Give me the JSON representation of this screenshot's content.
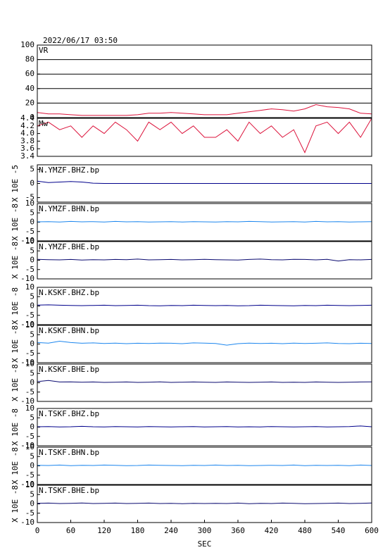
{
  "chart_data": [
    {
      "type": "line",
      "title": "2022/06/17 03:50",
      "label": "VR",
      "color": "#dc143c",
      "grid": true,
      "x": [
        0,
        20,
        40,
        60,
        80,
        100,
        120,
        140,
        160,
        180,
        200,
        220,
        240,
        260,
        280,
        300,
        320,
        340,
        360,
        380,
        400,
        420,
        440,
        460,
        480,
        500,
        520,
        540,
        560,
        580,
        600
      ],
      "values": [
        7,
        5,
        5,
        4,
        3,
        3,
        3,
        3,
        3,
        4,
        6,
        6,
        7,
        6,
        5,
        4,
        4,
        4,
        6,
        8,
        10,
        12,
        11,
        9,
        12,
        18,
        15,
        14,
        12,
        6,
        5
      ],
      "xlim": [
        0,
        600
      ],
      "ylim": [
        0,
        100
      ],
      "yticks": [
        0,
        20,
        40,
        60,
        80,
        100
      ]
    },
    {
      "type": "line",
      "label": "Mw",
      "color": "#dc143c",
      "grid": false,
      "x": [
        0,
        20,
        40,
        60,
        80,
        100,
        120,
        140,
        160,
        180,
        200,
        220,
        240,
        260,
        280,
        300,
        320,
        340,
        360,
        380,
        400,
        420,
        440,
        460,
        480,
        500,
        520,
        540,
        560,
        580,
        600
      ],
      "values": [
        4.2,
        4.3,
        4.1,
        4.2,
        3.9,
        4.2,
        4,
        4.3,
        4.1,
        3.8,
        4.3,
        4.1,
        4.3,
        4,
        4.2,
        3.9,
        3.9,
        4.1,
        3.8,
        4.3,
        4,
        4.2,
        3.9,
        4.1,
        3.5,
        4.2,
        4.3,
        4,
        4.3,
        3.9,
        4.4
      ],
      "xlim": [
        0,
        600
      ],
      "ylim": [
        3.4,
        4.4
      ],
      "yticks": [
        3.4,
        3.6,
        3.8,
        {
          "value": 4,
          "label": "4.0"
        },
        4.2,
        4.4
      ]
    },
    {
      "type": "line",
      "label": "N.YMZF.BHZ.bp",
      "ylabel": "X 10E -5",
      "color": "#00008b",
      "grid": false,
      "x": [
        0,
        20,
        40,
        60,
        80,
        100,
        120,
        140,
        160,
        180,
        200,
        220,
        240,
        260,
        280,
        300,
        320,
        340,
        360,
        380,
        400,
        420,
        440,
        460,
        480,
        500,
        520,
        540,
        560,
        580,
        600
      ],
      "values": [
        0.8,
        0.3,
        0.5,
        0.7,
        0.5,
        0.1,
        0,
        0,
        0,
        0,
        0,
        0,
        0,
        0,
        0,
        0,
        0,
        0,
        0,
        0,
        0,
        0,
        0,
        0,
        0,
        0,
        0,
        0,
        0,
        0,
        0
      ],
      "xlim": [
        0,
        600
      ],
      "ylim": [
        -6.6,
        6.6
      ],
      "yticks": [
        -5,
        0,
        5
      ]
    },
    {
      "type": "line",
      "label": "N.YMZF.BHN.bp",
      "ylabel": "X 10E -8",
      "color": "#1c86ee",
      "grid": false,
      "x": [
        0,
        20,
        40,
        60,
        80,
        100,
        120,
        140,
        160,
        180,
        200,
        220,
        240,
        260,
        280,
        300,
        320,
        340,
        360,
        380,
        400,
        420,
        440,
        460,
        480,
        500,
        520,
        540,
        560,
        580,
        600
      ],
      "values": [
        0.2,
        0.3,
        0.1,
        0.4,
        0.2,
        0.3,
        0.1,
        0.4,
        0.2,
        0.3,
        0.1,
        0.2,
        0.3,
        0.1,
        0.3,
        0.2,
        0.1,
        0.3,
        0.2,
        0.4,
        0.3,
        0.1,
        0.2,
        0.3,
        0.1,
        0.4,
        0.2,
        0.3,
        0.1,
        0.2,
        0.3
      ],
      "xlim": [
        0,
        600
      ],
      "ylim": [
        -10,
        10
      ],
      "yticks": [
        -10,
        -5,
        0,
        5,
        10
      ]
    },
    {
      "type": "line",
      "label": "N.YMZF.BHE.bp",
      "ylabel": "X 10E -8",
      "color": "#0a0a70",
      "grid": false,
      "x": [
        0,
        20,
        40,
        60,
        80,
        100,
        120,
        140,
        160,
        180,
        200,
        220,
        240,
        260,
        280,
        300,
        320,
        340,
        360,
        380,
        400,
        420,
        440,
        460,
        480,
        500,
        520,
        540,
        560,
        580,
        600
      ],
      "values": [
        0.5,
        0.3,
        0.2,
        0.4,
        0.1,
        0.3,
        0.2,
        0.4,
        0.3,
        0.6,
        0.2,
        0.3,
        0.4,
        0.2,
        0.3,
        0.5,
        0.3,
        0.2,
        0.1,
        0.4,
        0.6,
        0.3,
        0.2,
        0.5,
        0.4,
        0.2,
        0.5,
        -0.4,
        0.3,
        0.2,
        0.4
      ],
      "xlim": [
        0,
        600
      ],
      "ylim": [
        -10,
        10
      ],
      "yticks": [
        -10,
        -5,
        0,
        5,
        10
      ]
    },
    {
      "type": "line",
      "label": "N.KSKF.BHZ.bp",
      "ylabel": "X 10E -8",
      "color": "#00008b",
      "grid": false,
      "x": [
        0,
        20,
        40,
        60,
        80,
        100,
        120,
        140,
        160,
        180,
        200,
        220,
        240,
        260,
        280,
        300,
        320,
        340,
        360,
        380,
        400,
        420,
        440,
        460,
        480,
        500,
        520,
        540,
        560,
        580,
        600
      ],
      "values": [
        0.5,
        0.6,
        0.4,
        0.3,
        0.2,
        0.3,
        0.4,
        0.2,
        0.3,
        0.4,
        0.2,
        0.1,
        0.3,
        0.2,
        0.4,
        0.3,
        0.2,
        0.3,
        0.1,
        0.2,
        0.4,
        0.3,
        0.2,
        0.1,
        0.3,
        0.2,
        0.4,
        0.3,
        0.2,
        0.3,
        0.4
      ],
      "xlim": [
        0,
        600
      ],
      "ylim": [
        -10,
        10
      ],
      "yticks": [
        -10,
        -5,
        0,
        5,
        10
      ]
    },
    {
      "type": "line",
      "label": "N.KSKF.BHN.bp",
      "ylabel": "X 10E -8",
      "color": "#1c86ee",
      "grid": false,
      "x": [
        0,
        20,
        40,
        60,
        80,
        100,
        120,
        140,
        160,
        180,
        200,
        220,
        240,
        260,
        280,
        300,
        320,
        340,
        360,
        380,
        400,
        420,
        440,
        460,
        480,
        500,
        520,
        540,
        560,
        580,
        600
      ],
      "values": [
        0.8,
        0.5,
        1.5,
        0.8,
        0.4,
        0.6,
        0.3,
        0.5,
        0.2,
        0.4,
        0.3,
        0.5,
        0.4,
        0.2,
        0.6,
        0.5,
        0.3,
        -0.6,
        0.2,
        0.5,
        0.3,
        0.4,
        0.2,
        0.5,
        0.3,
        0.4,
        0.6,
        0.3,
        0.2,
        0.4,
        0.3
      ],
      "xlim": [
        0,
        600
      ],
      "ylim": [
        -10,
        10
      ],
      "yticks": [
        -10,
        -5,
        0,
        5,
        10
      ]
    },
    {
      "type": "line",
      "label": "N.KSKF.BHE.bp",
      "ylabel": "X 10E -8",
      "color": "#0a0a70",
      "grid": false,
      "x": [
        0,
        20,
        40,
        60,
        80,
        100,
        120,
        140,
        160,
        180,
        200,
        220,
        240,
        260,
        280,
        300,
        320,
        340,
        360,
        380,
        400,
        420,
        440,
        460,
        480,
        500,
        520,
        540,
        560,
        580,
        600
      ],
      "values": [
        0.6,
        1.2,
        0.4,
        0.5,
        0.3,
        0.4,
        0.2,
        0.3,
        0.4,
        0.2,
        0.3,
        0.5,
        0.2,
        0.3,
        0.4,
        0.3,
        0.2,
        0.4,
        0.3,
        0.2,
        0.3,
        0.4,
        0.2,
        0.3,
        0.2,
        0.4,
        0.3,
        0.2,
        0.3,
        0.4,
        0.5
      ],
      "xlim": [
        0,
        600
      ],
      "ylim": [
        -10,
        10
      ],
      "yticks": [
        -10,
        -5,
        0,
        5,
        10
      ]
    },
    {
      "type": "line",
      "label": "N.TSKF.BHZ.bp",
      "ylabel": "X 10E -8",
      "color": "#00008b",
      "grid": false,
      "x": [
        0,
        20,
        40,
        60,
        80,
        100,
        120,
        140,
        160,
        180,
        200,
        220,
        240,
        260,
        280,
        300,
        320,
        340,
        360,
        380,
        400,
        420,
        440,
        460,
        480,
        500,
        520,
        540,
        560,
        580,
        600
      ],
      "values": [
        0.2,
        0.3,
        0.1,
        0.2,
        0.4,
        0.2,
        0.1,
        0.3,
        0.2,
        0.1,
        0.3,
        0.2,
        0.1,
        0.2,
        0.3,
        0.1,
        0.2,
        0.3,
        0.1,
        0.2,
        0.1,
        0.3,
        0.2,
        0.1,
        0.2,
        0.3,
        0.1,
        0.2,
        0.3,
        0.6,
        0.2
      ],
      "xlim": [
        0,
        600
      ],
      "ylim": [
        -10,
        10
      ],
      "yticks": [
        -10,
        -5,
        0,
        5,
        10
      ]
    },
    {
      "type": "line",
      "label": "N.TSKF.BHN.bp",
      "ylabel": "X 10E -8",
      "color": "#1c86ee",
      "grid": false,
      "x": [
        0,
        20,
        40,
        60,
        80,
        100,
        120,
        140,
        160,
        180,
        200,
        220,
        240,
        260,
        280,
        300,
        320,
        340,
        360,
        380,
        400,
        420,
        440,
        460,
        480,
        500,
        520,
        540,
        560,
        580,
        600
      ],
      "values": [
        0.3,
        0.2,
        0.4,
        0.1,
        0.3,
        0.2,
        0.4,
        0.3,
        0.1,
        0.2,
        0.4,
        0.3,
        0.2,
        0.1,
        0.3,
        0.2,
        0.4,
        0.2,
        0.3,
        0.1,
        0.2,
        0.3,
        0.2,
        0.4,
        0.1,
        0.3,
        0.2,
        0.3,
        0.1,
        0.4,
        0.2
      ],
      "xlim": [
        0,
        600
      ],
      "ylim": [
        -10,
        10
      ],
      "yticks": [
        -10,
        -5,
        0,
        5,
        10
      ]
    },
    {
      "type": "line",
      "label": "N.TSKF.BHE.bp",
      "ylabel": "X 10E -8",
      "color": "#0a0a70",
      "grid": false,
      "xlabel": "SEC",
      "x": [
        0,
        20,
        40,
        60,
        80,
        100,
        120,
        140,
        160,
        180,
        200,
        220,
        240,
        260,
        280,
        300,
        320,
        340,
        360,
        380,
        400,
        420,
        440,
        460,
        480,
        500,
        520,
        540,
        560,
        580,
        600
      ],
      "values": [
        0.3,
        0.4,
        0.2,
        0.3,
        0.5,
        0.2,
        0.3,
        0.4,
        0.2,
        0.3,
        0.4,
        0.2,
        0.3,
        0.1,
        0.3,
        0.2,
        0.3,
        0.2,
        0.4,
        0.1,
        0.3,
        0.2,
        0.4,
        0.3,
        0.1,
        0.2,
        0.3,
        0.4,
        0.2,
        0.3,
        0.5
      ],
      "xlim": [
        0,
        600
      ],
      "xticks": [
        0,
        60,
        120,
        180,
        240,
        300,
        360,
        420,
        480,
        540,
        600
      ],
      "ylim": [
        -10,
        10
      ],
      "yticks": [
        -10,
        -5,
        0,
        5,
        10
      ]
    }
  ]
}
